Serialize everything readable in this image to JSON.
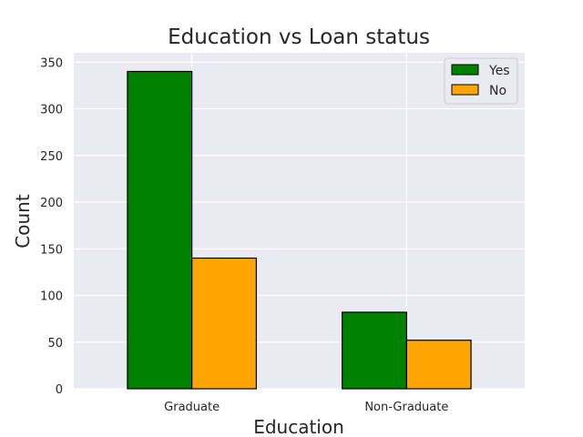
{
  "chart_data": {
    "type": "bar",
    "title": "Education vs Loan status",
    "xlabel": "Education",
    "ylabel": "Count",
    "categories": [
      "Graduate",
      "Non-Graduate"
    ],
    "series": [
      {
        "name": "Yes",
        "values": [
          340,
          82
        ],
        "color": "#008000"
      },
      {
        "name": "No",
        "values": [
          140,
          52
        ],
        "color": "#FFA500"
      }
    ],
    "ylim": [
      0,
      360
    ],
    "yticks": [
      0,
      50,
      100,
      150,
      200,
      250,
      300,
      350
    ],
    "grid": true,
    "legend": "top-right",
    "background": "#EAEAF2",
    "edge_color": "#000000"
  }
}
